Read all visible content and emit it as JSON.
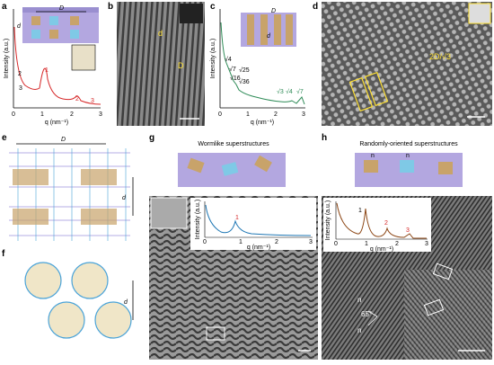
{
  "panels": {
    "a": {
      "letter": "a",
      "y_label": "Intensity (a.u.)",
      "x_label": "q (nm⁻¹)",
      "x_ticks": [
        "0",
        "1",
        "2",
        "3"
      ],
      "inset_labels": [
        "D",
        "d"
      ],
      "peak_labels_black": [
        "2",
        "3"
      ],
      "peak_labels_red": [
        "1",
        "2",
        "3"
      ]
    },
    "b": {
      "letter": "b",
      "labels": [
        "d",
        "D"
      ]
    },
    "c": {
      "letter": "c",
      "y_label": "Intensity (a.u.)",
      "x_label": "q (nm⁻¹)",
      "x_ticks": [
        "0",
        "1",
        "2",
        "3"
      ],
      "inset_labels": [
        "D",
        "d"
      ],
      "peak_labels_black": [
        "√4",
        "√7",
        "√25",
        "√16",
        "√36"
      ],
      "peak_labels_green": [
        "√3",
        "√4",
        "√7"
      ]
    },
    "d": {
      "letter": "d",
      "label": "2D/√3"
    },
    "e": {
      "letter": "e",
      "labels": [
        "D",
        "d"
      ]
    },
    "f": {
      "letter": "f",
      "label": "d"
    },
    "g": {
      "letter": "g",
      "title": "Wormlike superstructures",
      "y_label": "Intensity (a.u.)",
      "x_label": "q (nm⁻¹)",
      "x_ticks": [
        "0",
        "1",
        "2",
        "3"
      ],
      "peak_label": "1"
    },
    "h": {
      "letter": "h",
      "title": "Randomly-oriented superstructures",
      "y_label": "Intensity (a.u.)",
      "x_label": "q (nm⁻¹)",
      "x_ticks": [
        "0",
        "1",
        "2",
        "3"
      ],
      "peak_labels_black": [
        "1"
      ],
      "peak_labels_red": [
        "2",
        "3"
      ],
      "inset_labels": [
        "n",
        "n"
      ],
      "image_labels": [
        "n",
        "65°",
        "n"
      ]
    }
  }
}
